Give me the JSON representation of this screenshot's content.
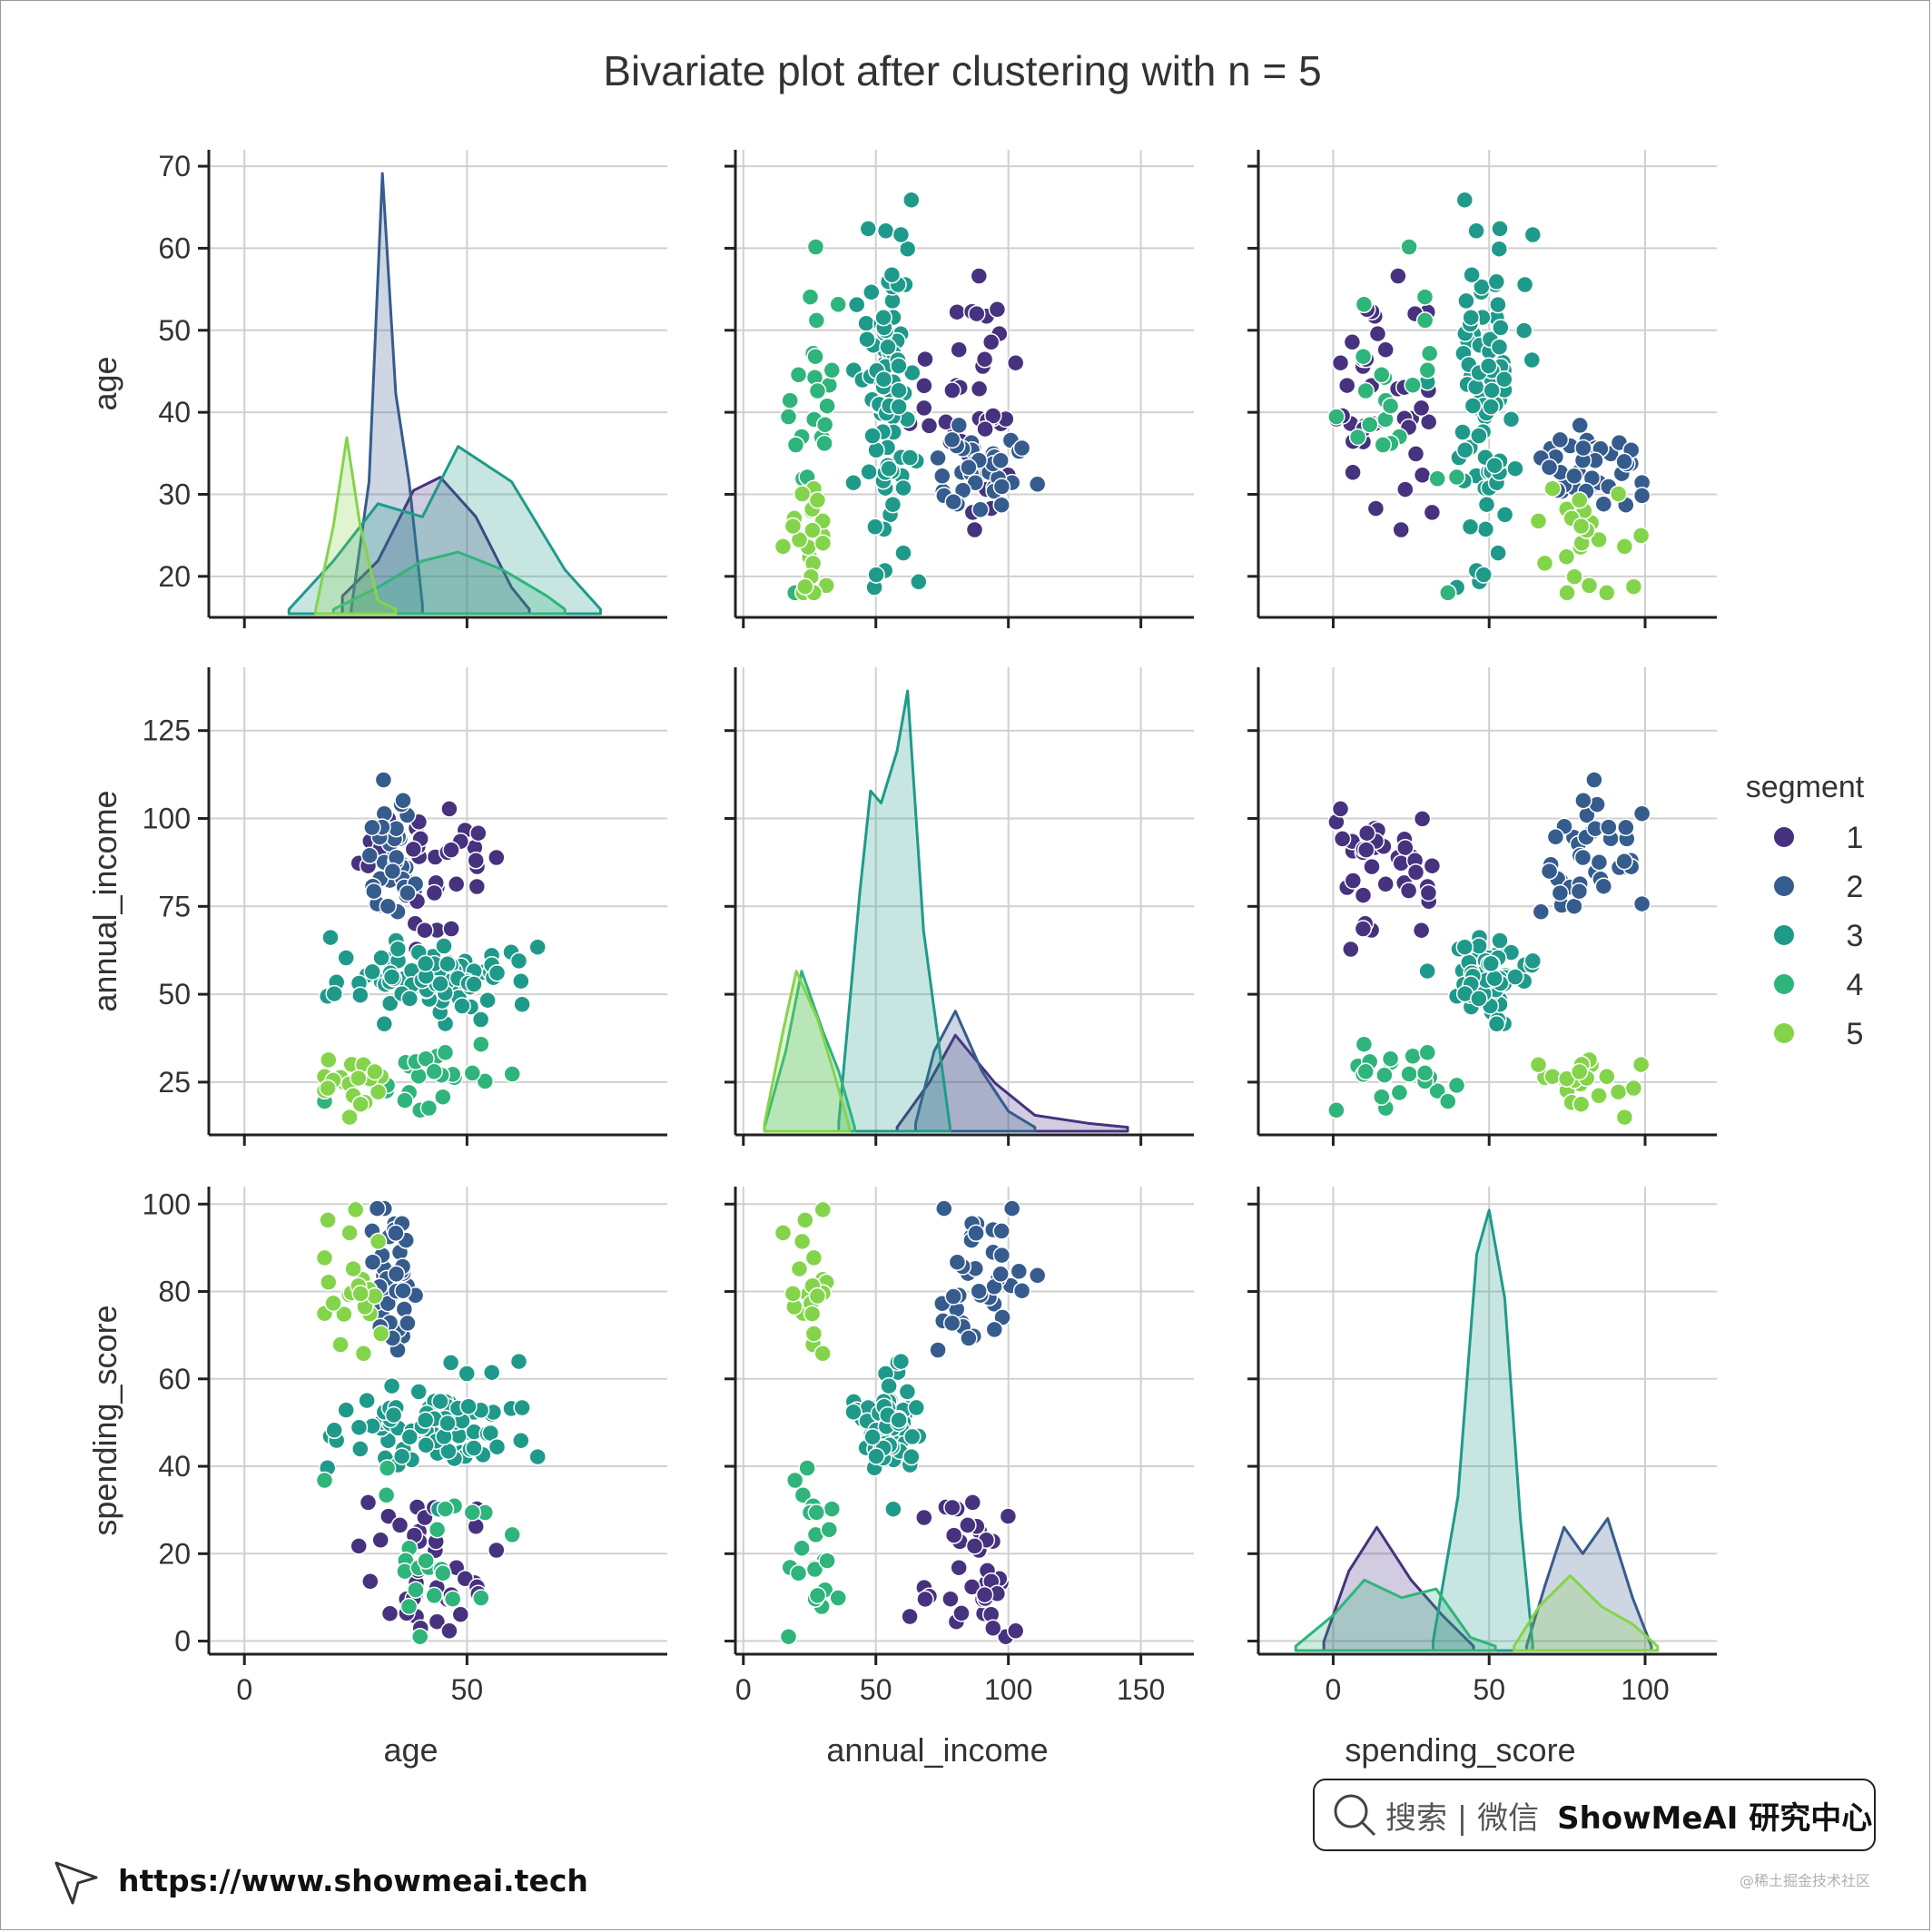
{
  "chart_data": {
    "type": "scatter",
    "title": "Bivariate plot after clustering with n = 5",
    "variables": [
      "age",
      "annual_income",
      "spending_score"
    ],
    "diag_kind": "kde",
    "grid": true,
    "legend": {
      "title": "segment",
      "position": "right",
      "entries": [
        "1",
        "2",
        "3",
        "4",
        "5"
      ]
    },
    "ranges": {
      "age": {
        "lim": [
          -8,
          95
        ],
        "ticks": [
          0,
          50
        ],
        "ticks_row": [
          20,
          30,
          40,
          50,
          60,
          70
        ],
        "lim_row": [
          15,
          72
        ]
      },
      "annual_income": {
        "lim": [
          -3,
          170
        ],
        "ticks": [
          0,
          50,
          100,
          150
        ],
        "ticks_row": [
          25,
          50,
          75,
          100,
          125
        ],
        "lim_row": [
          10,
          143
        ]
      },
      "spending_score": {
        "lim": [
          -24,
          123
        ],
        "ticks": [
          0,
          50,
          100
        ],
        "ticks_row": [
          0,
          20,
          40,
          60,
          80,
          100
        ],
        "lim_row": [
          -3,
          104
        ]
      }
    },
    "series": [
      {
        "name": "1",
        "color": "#46327e",
        "age_mu": 41,
        "age_sd": 11,
        "income_mu": 88,
        "income_sd": 16,
        "score_mu": 17,
        "score_sd": 10,
        "n": 39,
        "kde": {
          "age": [
            [
              22,
              0.004
            ],
            [
              30,
              0.012
            ],
            [
              38,
              0.028
            ],
            [
              44,
              0.031
            ],
            [
              52,
              0.022
            ],
            [
              60,
              0.006
            ],
            [
              64,
              0.001
            ]
          ],
          "annual_income": [
            [
              58,
              0.001
            ],
            [
              70,
              0.012
            ],
            [
              80,
              0.024
            ],
            [
              95,
              0.012
            ],
            [
              110,
              0.004
            ],
            [
              130,
              0.002
            ],
            [
              145,
              0.001
            ]
          ],
          "spending_score": [
            [
              -3,
              0.002
            ],
            [
              5,
              0.018
            ],
            [
              14,
              0.028
            ],
            [
              25,
              0.016
            ],
            [
              35,
              0.008
            ],
            [
              45,
              0.001
            ]
          ]
        }
      },
      {
        "name": "2",
        "color": "#365c8d",
        "age_mu": 33,
        "age_sd": 4,
        "income_mu": 87,
        "income_sd": 16,
        "score_mu": 82,
        "score_sd": 9,
        "n": 39,
        "kde": {
          "age": [
            [
              24,
              0.001
            ],
            [
              28,
              0.03
            ],
            [
              31,
              0.1
            ],
            [
              34,
              0.05
            ],
            [
              37,
              0.03
            ],
            [
              40,
              0.002
            ]
          ],
          "annual_income": [
            [
              65,
              0.002
            ],
            [
              72,
              0.02
            ],
            [
              80,
              0.03
            ],
            [
              90,
              0.015
            ],
            [
              100,
              0.005
            ],
            [
              110,
              0.001
            ]
          ],
          "spending_score": [
            [
              62,
              0.001
            ],
            [
              68,
              0.015
            ],
            [
              74,
              0.028
            ],
            [
              80,
              0.022
            ],
            [
              88,
              0.03
            ],
            [
              96,
              0.012
            ],
            [
              102,
              0.001
            ]
          ]
        }
      },
      {
        "name": "3",
        "color": "#1f9a8a",
        "age_mu": 43,
        "age_sd": 16,
        "income_mu": 54,
        "income_sd": 9,
        "score_mu": 49,
        "score_sd": 6,
        "n": 82,
        "kde": {
          "age": [
            [
              10,
              0.001
            ],
            [
              20,
              0.012
            ],
            [
              30,
              0.025
            ],
            [
              40,
              0.022
            ],
            [
              48,
              0.038
            ],
            [
              60,
              0.03
            ],
            [
              72,
              0.01
            ],
            [
              80,
              0.001
            ]
          ],
          "annual_income": [
            [
              36,
              0.002
            ],
            [
              44,
              0.06
            ],
            [
              48,
              0.085
            ],
            [
              52,
              0.082
            ],
            [
              58,
              0.095
            ],
            [
              62,
              0.11
            ],
            [
              68,
              0.05
            ],
            [
              78,
              0.001
            ]
          ],
          "spending_score": [
            [
              32,
              0.002
            ],
            [
              40,
              0.035
            ],
            [
              46,
              0.09
            ],
            [
              50,
              0.1
            ],
            [
              55,
              0.08
            ],
            [
              60,
              0.03
            ],
            [
              64,
              0.001
            ]
          ]
        }
      },
      {
        "name": "4",
        "color": "#2fb47c",
        "age_mu": 45,
        "age_sd": 13,
        "income_mu": 26,
        "income_sd": 7,
        "score_mu": 21,
        "score_sd": 12,
        "n": 23,
        "kde": {
          "age": [
            [
              20,
              0.001
            ],
            [
              30,
              0.006
            ],
            [
              40,
              0.012
            ],
            [
              48,
              0.014
            ],
            [
              58,
              0.01
            ],
            [
              68,
              0.004
            ],
            [
              72,
              0.001
            ]
          ],
          "annual_income": [
            [
              8,
              0.001
            ],
            [
              16,
              0.02
            ],
            [
              22,
              0.04
            ],
            [
              30,
              0.025
            ],
            [
              36,
              0.015
            ],
            [
              42,
              0.001
            ]
          ],
          "spending_score": [
            [
              -12,
              0.001
            ],
            [
              0,
              0.008
            ],
            [
              10,
              0.016
            ],
            [
              22,
              0.012
            ],
            [
              33,
              0.014
            ],
            [
              44,
              0.003
            ],
            [
              52,
              0.001
            ]
          ]
        }
      },
      {
        "name": "5",
        "color": "#84d44b",
        "age_mu": 25,
        "age_sd": 5,
        "income_mu": 26,
        "income_sd": 7,
        "score_mu": 79,
        "score_sd": 10,
        "n": 22,
        "kde": {
          "age": [
            [
              16,
              0.001
            ],
            [
              20,
              0.02
            ],
            [
              23,
              0.04
            ],
            [
              26,
              0.02
            ],
            [
              30,
              0.003
            ],
            [
              34,
              0.001
            ]
          ],
          "annual_income": [
            [
              8,
              0.002
            ],
            [
              15,
              0.025
            ],
            [
              20,
              0.04
            ],
            [
              28,
              0.028
            ],
            [
              34,
              0.015
            ],
            [
              40,
              0.001
            ]
          ],
          "spending_score": [
            [
              58,
              0.001
            ],
            [
              66,
              0.01
            ],
            [
              76,
              0.017
            ],
            [
              86,
              0.01
            ],
            [
              96,
              0.006
            ],
            [
              104,
              0.001
            ]
          ]
        }
      }
    ]
  },
  "footer": {
    "search_hint": "搜索 | 微信",
    "brand": "ShowMeAI 研究中心",
    "url": "https://www.showmeai.tech",
    "watermark": "@稀土掘金技术社区"
  }
}
